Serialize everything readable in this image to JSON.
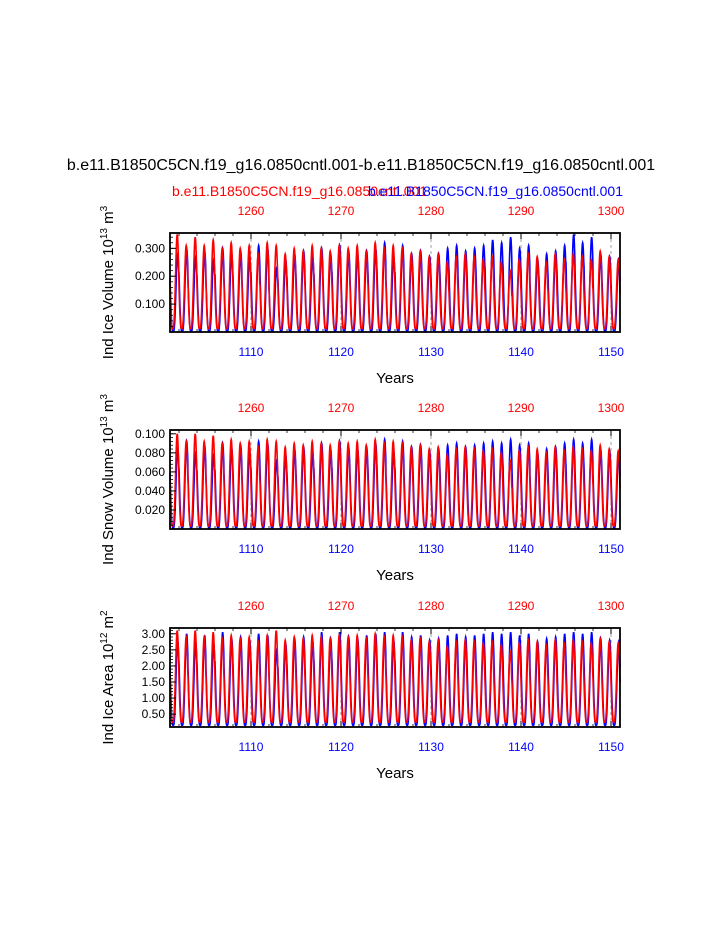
{
  "page": {
    "main_title": "b.e11.B1850C5CN.f19_g16.0850cntl.001-b.e11.B1850C5CN.f19_g16.0850cntl.001",
    "legend_red": "b.e11.B1850C5CN.f19_g16.0850cntl.001",
    "legend_blue": "b.e11.B1850C5CN.f19_g16.0850cntl.001"
  },
  "colors": {
    "red": "#ff0000",
    "blue": "#0000ff",
    "axis": "#000000",
    "grid": "#888888"
  },
  "chart_data": [
    {
      "type": "line",
      "title": "",
      "ylabel": "Ind Ice Volume 10",
      "ylabel_exp": "13",
      "ylabel_unit": " m",
      "ylabel_unit_exp": "3",
      "xlabel": "Years",
      "ylim": [
        0.0,
        0.355
      ],
      "yticks": [
        0.1,
        0.2,
        0.3
      ],
      "ytick_labels": [
        "0.100",
        "0.200",
        "0.300"
      ],
      "bottom_axis": {
        "range": [
          1101,
          1151
        ],
        "ticks": [
          1110,
          1120,
          1130,
          1140,
          1150
        ],
        "color": "blue"
      },
      "top_axis": {
        "range": [
          1251,
          1301
        ],
        "ticks": [
          1260,
          1270,
          1280,
          1290,
          1300
        ],
        "color": "red"
      },
      "series": [
        {
          "name": "blue",
          "color": "#0000ff",
          "period": 1,
          "min": 0.002,
          "peaks": [
            0.28,
            0.3,
            0.27,
            0.29,
            0.26,
            0.3,
            0.28,
            0.29,
            0.27,
            0.31,
            0.3,
            0.23,
            0.26,
            0.28,
            0.29,
            0.27,
            0.3,
            0.28,
            0.31,
            0.29,
            0.28,
            0.29,
            0.3,
            0.32,
            0.27,
            0.31,
            0.28,
            0.29,
            0.27,
            0.28,
            0.3,
            0.31,
            0.29,
            0.3,
            0.31,
            0.33,
            0.32,
            0.34,
            0.3,
            0.31,
            0.26,
            0.28,
            0.29,
            0.31,
            0.35,
            0.32,
            0.34,
            0.28,
            0.27,
            0.26
          ]
        },
        {
          "name": "red",
          "color": "#ff0000",
          "period": 1,
          "min": 0.012,
          "peaks": [
            0.35,
            0.31,
            0.34,
            0.31,
            0.33,
            0.3,
            0.32,
            0.3,
            0.31,
            0.28,
            0.32,
            0.31,
            0.28,
            0.3,
            0.29,
            0.31,
            0.3,
            0.29,
            0.31,
            0.3,
            0.31,
            0.29,
            0.32,
            0.3,
            0.31,
            0.3,
            0.28,
            0.29,
            0.27,
            0.28,
            0.25,
            0.27,
            0.28,
            0.27,
            0.26,
            0.27,
            0.25,
            0.22,
            0.26,
            0.28,
            0.27,
            0.25,
            0.28,
            0.26,
            0.28,
            0.27,
            0.26,
            0.29,
            0.27,
            0.26
          ]
        }
      ]
    },
    {
      "type": "line",
      "title": "",
      "ylabel": "Ind Snow Volume 10",
      "ylabel_exp": "13",
      "ylabel_unit": " m",
      "ylabel_unit_exp": "3",
      "xlabel": "Years",
      "ylim": [
        0.0,
        0.104
      ],
      "yticks": [
        0.02,
        0.04,
        0.06,
        0.08,
        0.1
      ],
      "ytick_labels": [
        "0.020",
        "0.040",
        "0.060",
        "0.080",
        "0.100"
      ],
      "bottom_axis": {
        "range": [
          1101,
          1151
        ],
        "ticks": [
          1110,
          1120,
          1130,
          1140,
          1150
        ],
        "color": "blue"
      },
      "top_axis": {
        "range": [
          1251,
          1301
        ],
        "ticks": [
          1260,
          1270,
          1280,
          1290,
          1300
        ],
        "color": "red"
      },
      "series": [
        {
          "name": "blue",
          "color": "#0000ff",
          "period": 1,
          "min": 0.001,
          "peaks": [
            0.085,
            0.092,
            0.08,
            0.088,
            0.078,
            0.09,
            0.085,
            0.088,
            0.082,
            0.092,
            0.09,
            0.072,
            0.078,
            0.084,
            0.086,
            0.08,
            0.09,
            0.084,
            0.092,
            0.086,
            0.084,
            0.086,
            0.09,
            0.094,
            0.082,
            0.092,
            0.086,
            0.088,
            0.082,
            0.084,
            0.088,
            0.09,
            0.086,
            0.088,
            0.09,
            0.092,
            0.09,
            0.094,
            0.088,
            0.09,
            0.08,
            0.084,
            0.086,
            0.09,
            0.094,
            0.09,
            0.094,
            0.084,
            0.082,
            0.08
          ]
        },
        {
          "name": "red",
          "color": "#ff0000",
          "period": 1,
          "min": 0.003,
          "peaks": [
            0.1,
            0.092,
            0.1,
            0.092,
            0.098,
            0.09,
            0.094,
            0.09,
            0.092,
            0.086,
            0.094,
            0.092,
            0.086,
            0.09,
            0.088,
            0.092,
            0.09,
            0.088,
            0.092,
            0.09,
            0.092,
            0.088,
            0.094,
            0.09,
            0.092,
            0.09,
            0.086,
            0.088,
            0.084,
            0.086,
            0.078,
            0.084,
            0.086,
            0.084,
            0.082,
            0.084,
            0.08,
            0.072,
            0.082,
            0.086,
            0.084,
            0.08,
            0.086,
            0.082,
            0.086,
            0.084,
            0.082,
            0.088,
            0.084,
            0.082
          ]
        }
      ]
    },
    {
      "type": "line",
      "title": "",
      "ylabel": "Ind Ice Area 10",
      "ylabel_exp": "12",
      "ylabel_unit": " m",
      "ylabel_unit_exp": "2",
      "xlabel": "Years",
      "ylim": [
        0.1,
        3.18
      ],
      "yticks": [
        0.5,
        1.0,
        1.5,
        2.0,
        2.5,
        3.0
      ],
      "ytick_labels": [
        "0.50",
        "1.00",
        "1.50",
        "2.00",
        "2.50",
        "3.00"
      ],
      "bottom_axis": {
        "range": [
          1101,
          1151
        ],
        "ticks": [
          1110,
          1120,
          1130,
          1140,
          1150
        ],
        "color": "blue"
      },
      "top_axis": {
        "range": [
          1251,
          1301
        ],
        "ticks": [
          1260,
          1270,
          1280,
          1290,
          1300
        ],
        "color": "red"
      },
      "series": [
        {
          "name": "blue",
          "color": "#0000ff",
          "period": 1,
          "min": 0.15,
          "peaks": [
            2.8,
            3.0,
            2.75,
            2.95,
            2.7,
            3.05,
            2.85,
            2.9,
            2.8,
            3.0,
            2.95,
            2.5,
            2.7,
            2.85,
            2.9,
            2.8,
            3.05,
            2.85,
            3.05,
            2.9,
            2.85,
            2.95,
            3.0,
            3.05,
            2.8,
            3.05,
            2.9,
            2.95,
            2.8,
            2.85,
            2.95,
            3.0,
            2.9,
            2.95,
            3.0,
            3.05,
            3.0,
            3.05,
            2.95,
            3.0,
            2.75,
            2.85,
            2.9,
            3.0,
            3.05,
            3.0,
            3.05,
            2.85,
            2.8,
            2.75
          ]
        },
        {
          "name": "red",
          "color": "#ff0000",
          "period": 1,
          "min": 0.25,
          "peaks": [
            3.1,
            2.9,
            3.1,
            2.9,
            3.05,
            2.85,
            2.95,
            2.85,
            2.9,
            2.75,
            2.95,
            3.1,
            2.8,
            2.9,
            2.85,
            2.95,
            2.9,
            2.85,
            2.95,
            2.9,
            2.95,
            2.85,
            3.0,
            2.9,
            2.95,
            2.9,
            2.8,
            2.85,
            2.75,
            2.8,
            2.6,
            2.75,
            2.8,
            2.75,
            2.7,
            2.75,
            2.65,
            2.45,
            2.7,
            2.8,
            2.75,
            2.65,
            2.8,
            2.7,
            2.8,
            2.75,
            2.7,
            2.85,
            2.75,
            2.7
          ]
        }
      ]
    }
  ]
}
